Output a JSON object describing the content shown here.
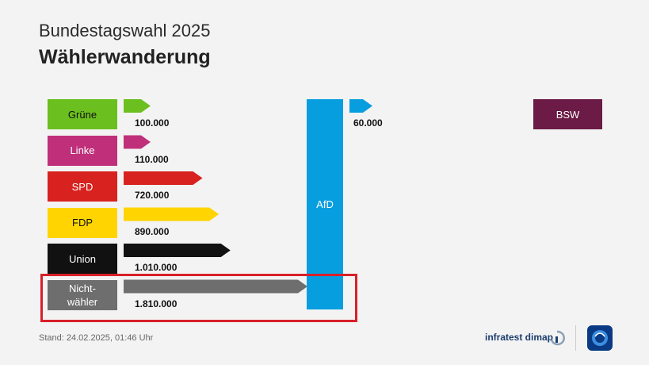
{
  "header": {
    "subtitle": "Bundestagswahl 2025",
    "title": "Wählerwanderung"
  },
  "chart_data": {
    "type": "bar",
    "categories": [
      "Grüne",
      "Linke",
      "SPD",
      "FDP",
      "Union",
      "Nicht-wähler"
    ],
    "values": [
      100000,
      110000,
      720000,
      890000,
      1010000,
      1810000
    ],
    "value_labels": [
      "100.000",
      "110.000",
      "720.000",
      "890.000",
      "1.010.000",
      "1.810.000"
    ],
    "target": "AfD",
    "outflow": {
      "target": "BSW",
      "value": 60000,
      "label": "60.000"
    },
    "colors": {
      "Grüne": "#6bbf1f",
      "Linke": "#c0307a",
      "SPD": "#d8221f",
      "FDP": "#ffd400",
      "Union": "#111111",
      "Nicht-wähler": "#6e6e6e",
      "AfD": "#079ee0",
      "BSW": "#6b1b45"
    },
    "text_colors": {
      "Grüne": "#111111",
      "Linke": "#ffffff",
      "SPD": "#ffffff",
      "FDP": "#111111",
      "Union": "#ffffff",
      "Nicht-wähler": "#ffffff"
    },
    "highlight": "Nicht-wähler"
  },
  "parties": [
    {
      "label": "Grüne"
    },
    {
      "label": "Linke"
    },
    {
      "label": "SPD"
    },
    {
      "label": "FDP"
    },
    {
      "label": "Union"
    },
    {
      "label": "Nicht-\nwähler"
    }
  ],
  "afd": {
    "label": "AfD"
  },
  "bsw": {
    "label": "BSW"
  },
  "footer": {
    "stand": "Stand:  24.02.2025, 01:46 Uhr",
    "source": "infratest dimap",
    "highlight_color": "#d9202a"
  }
}
